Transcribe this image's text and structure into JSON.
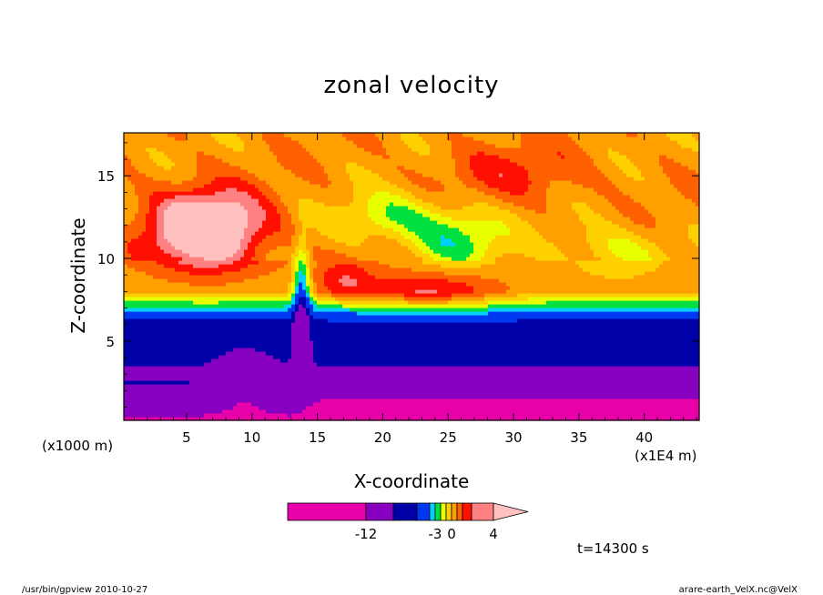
{
  "chart_data": {
    "type": "heatmap",
    "title": "zonal velocity",
    "xlabel": "X-coordinate",
    "ylabel": "Z-coordinate",
    "x_unit_left": "(x1000 m)",
    "x_unit_right": "(x1E4 m)",
    "xlim": [
      0.2,
      44.2
    ],
    "ylim": [
      0.2,
      17.6
    ],
    "xticks": [
      5,
      10,
      15,
      20,
      25,
      30,
      35,
      40
    ],
    "yticks": [
      5,
      10,
      15
    ],
    "levels": [
      -16,
      -12,
      -8,
      -6,
      -4,
      -3,
      -2,
      -1,
      0,
      1,
      2,
      3,
      4,
      6,
      8,
      12
    ],
    "colors": [
      "#e800a8",
      "#8800c0",
      "#0000a8",
      "#0038f0",
      "#00d0ff",
      "#00e040",
      "#e8ff00",
      "#ffd000",
      "#ffa000",
      "#ff6000",
      "#ff1000",
      "#ff8080",
      "#ffc0c0"
    ],
    "colorbar_labels": [
      {
        "text": "-12",
        "value": -12
      },
      {
        "text": "-3",
        "value": -3
      },
      {
        "text": "0",
        "value": 0
      },
      {
        "text": "4",
        "value": 4
      }
    ],
    "time_label": "t=14300 s",
    "footer_left": "/usr/bin/gpview  2010-10-27",
    "footer_right": "arare-earth_VelX.nc@VelX"
  }
}
